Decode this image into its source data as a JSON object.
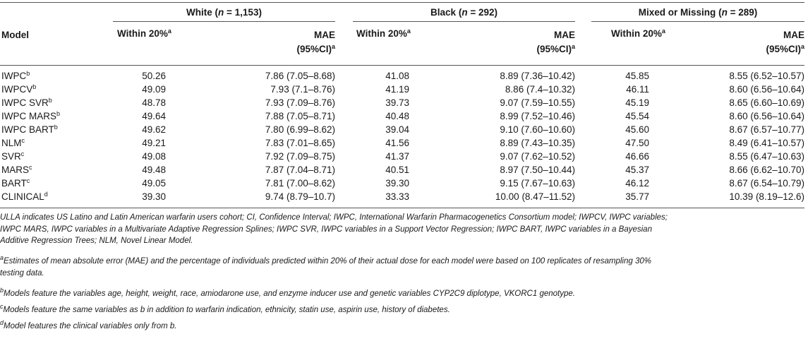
{
  "groups": [
    {
      "name": "White",
      "n": "n",
      "eq": " = 1,153)"
    },
    {
      "name": "Black",
      "n": "n",
      "eq": " = 292)"
    },
    {
      "name": "Mixed or Missing",
      "n": "n",
      "eq": " = 289)"
    }
  ],
  "col_headers": {
    "model": "Model",
    "within": "Within 20%",
    "within_sup": "a",
    "mae_line1": "MAE",
    "mae_line2": "(95%CI)",
    "mae_sup": "a"
  },
  "rows": [
    {
      "model": "IWPC",
      "sup": "b",
      "cells": [
        "50.26",
        "7.86 (7.05–8.68)",
        "41.08",
        "8.89 (7.36–10.42)",
        "45.85",
        "8.55 (6.52–10.57)"
      ]
    },
    {
      "model": "IWPCV",
      "sup": "b",
      "cells": [
        "49.09",
        "7.93 (7.1–8.76)",
        "41.19",
        "8.86 (7.4–10.32)",
        "46.11",
        "8.60 (6.56–10.64)"
      ]
    },
    {
      "model": "IWPC SVR",
      "sup": "b",
      "cells": [
        "48.78",
        "7.93 (7.09–8.76)",
        "39.73",
        "9.07 (7.59–10.55)",
        "45.19",
        "8.65 (6.60–10.69)"
      ]
    },
    {
      "model": "IWPC MARS",
      "sup": "b",
      "cells": [
        "49.64",
        "7.88 (7.05–8.71)",
        "40.48",
        "8.99 (7.52–10.46)",
        "45.54",
        "8.60 (6.56–10.64)"
      ]
    },
    {
      "model": "IWPC BART",
      "sup": "b",
      "cells": [
        "49.62",
        "7.80 (6.99–8.62)",
        "39.04",
        "9.10 (7.60–10.60)",
        "45.60",
        "8.67 (6.57–10.77)"
      ]
    },
    {
      "model": "NLM",
      "sup": "c",
      "cells": [
        "49.21",
        "7.83 (7.01–8.65)",
        "41.56",
        "8.89 (7.43–10.35)",
        "47.50",
        "8.49 (6.41–10.57)"
      ]
    },
    {
      "model": "SVR",
      "sup": "c",
      "cells": [
        "49.08",
        "7.92 (7.09–8.75)",
        "41.37",
        "9.07 (7.62–10.52)",
        "46.66",
        "8.55 (6.47–10.63)"
      ]
    },
    {
      "model": "MARS",
      "sup": "c",
      "cells": [
        "49.48",
        "7.87 (7.04–8.71)",
        "40.51",
        "8.97 (7.50–10.44)",
        "45.37",
        "8.66 (6.62–10.70)"
      ]
    },
    {
      "model": "BART",
      "sup": "c",
      "cells": [
        "49.05",
        "7.81 (7.00–8.62)",
        "39.30",
        "9.15 (7.67–10.63)",
        "46.12",
        "8.67 (6.54–10.79)"
      ]
    },
    {
      "model": "CLINICAL",
      "sup": "d",
      "cells": [
        "39.30",
        "9.74 (8.79–10.7)",
        "33.33",
        "10.00 (8.47–11.52)",
        "35.77",
        "10.39 (8.19–12.6)"
      ]
    }
  ],
  "notes": {
    "abbrev": [
      "ULLA indicates US Latino and Latin American warfarin users cohort; CI, Confidence Interval; IWPC, International Warfarin Pharmacogenetics Consortium model; IWPCV, IWPC variables;",
      "IWPC MARS, IWPC variables in a Multivariate Adaptive Regression Splines; IWPC SVR, IWPC variables in a Support Vector Regression; IWPC BART, IWPC variables in a Bayesian",
      "Additive Regression Trees; NLM, Novel Linear Model."
    ],
    "a_mark": "a",
    "a": [
      "Estimates of mean absolute error (MAE) and the percentage of individuals predicted within 20% of their actual dose for each model were based on 100 replicates of resampling 30%",
      "testing data."
    ],
    "b_mark": "b",
    "b": "Models feature the variables age, height, weight, race, amiodarone use, and enzyme inducer use and genetic variables CYP2C9 diplotype, VKORC1 genotype.",
    "c_mark": "c",
    "c": "Models feature the same variables as b in addition to warfarin indication, ethnicity, statin use, aspirin use, history of diabetes.",
    "d_mark": "d",
    "d": "Model features the clinical variables only from b."
  }
}
